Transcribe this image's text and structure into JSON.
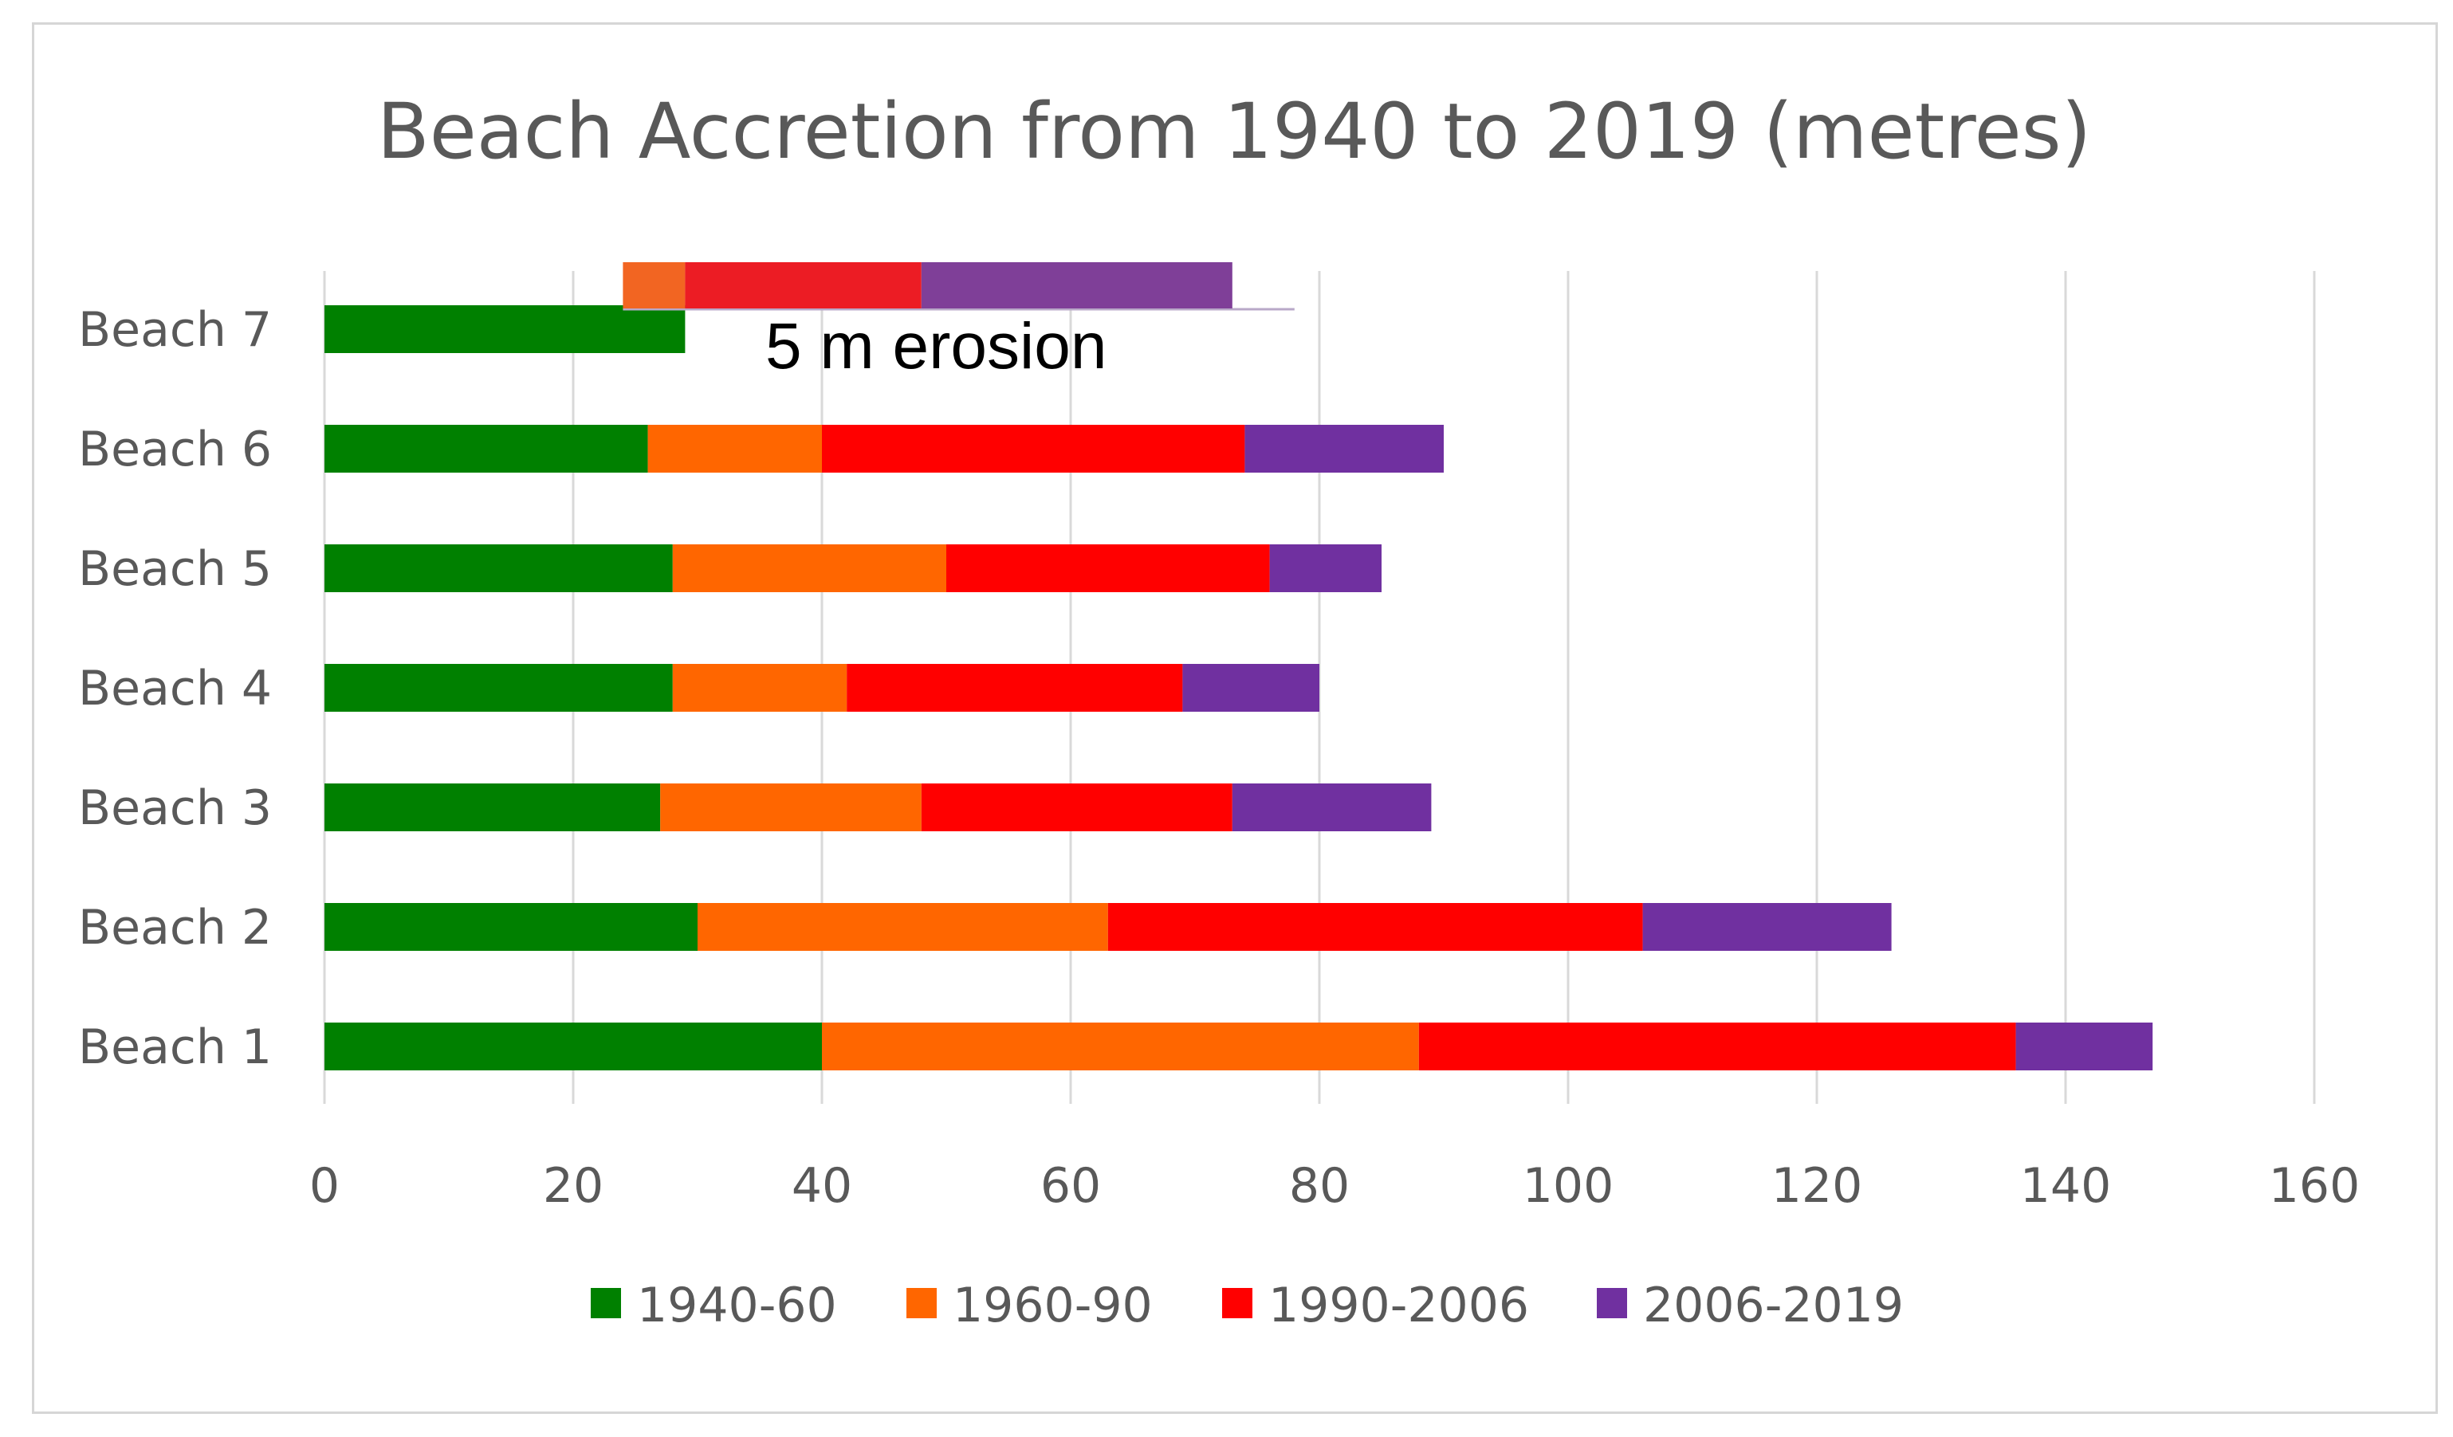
{
  "chart_data": {
    "type": "bar",
    "orientation": "horizontal",
    "stacked": true,
    "title": "Beach Accretion from 1940 to 2019 (metres)",
    "xlabel": "",
    "ylabel": "",
    "xlim": [
      0,
      160
    ],
    "xticks": [
      0,
      20,
      40,
      60,
      80,
      100,
      120,
      140,
      160
    ],
    "grid": true,
    "legend_position": "bottom",
    "categories": [
      "Beach 1",
      "Beach 2",
      "Beach 3",
      "Beach 4",
      "Beach 5",
      "Beach 6",
      "Beach 7"
    ],
    "series": [
      {
        "name": "1940-60",
        "color": "#008000",
        "values": [
          40,
          30,
          27,
          28,
          28,
          26,
          29
        ]
      },
      {
        "name": "1960-90",
        "color": "#ff6600",
        "values": [
          48,
          33,
          21,
          14,
          22,
          14,
          0
        ]
      },
      {
        "name": "1990-2006",
        "color": "#ff0000",
        "values": [
          48,
          43,
          25,
          27,
          26,
          34,
          0
        ]
      },
      {
        "name": "2006-2019",
        "color": "#7030a0",
        "values": [
          11,
          20,
          16,
          11,
          9,
          16,
          0
        ]
      }
    ],
    "inset_bar": {
      "category": "Beach 7",
      "segments": [
        {
          "series": "1960-90",
          "start": 24,
          "end": 29,
          "color": "#f26522"
        },
        {
          "series": "1990-2006",
          "start": 29,
          "end": 48,
          "color": "#ec1c24"
        },
        {
          "series": "2006-2019",
          "start": 48,
          "end": 73,
          "color": "#7f3f98"
        }
      ],
      "line_end": 78
    },
    "annotations": [
      {
        "text": "5 m erosion",
        "near": "Beach 7"
      }
    ]
  }
}
